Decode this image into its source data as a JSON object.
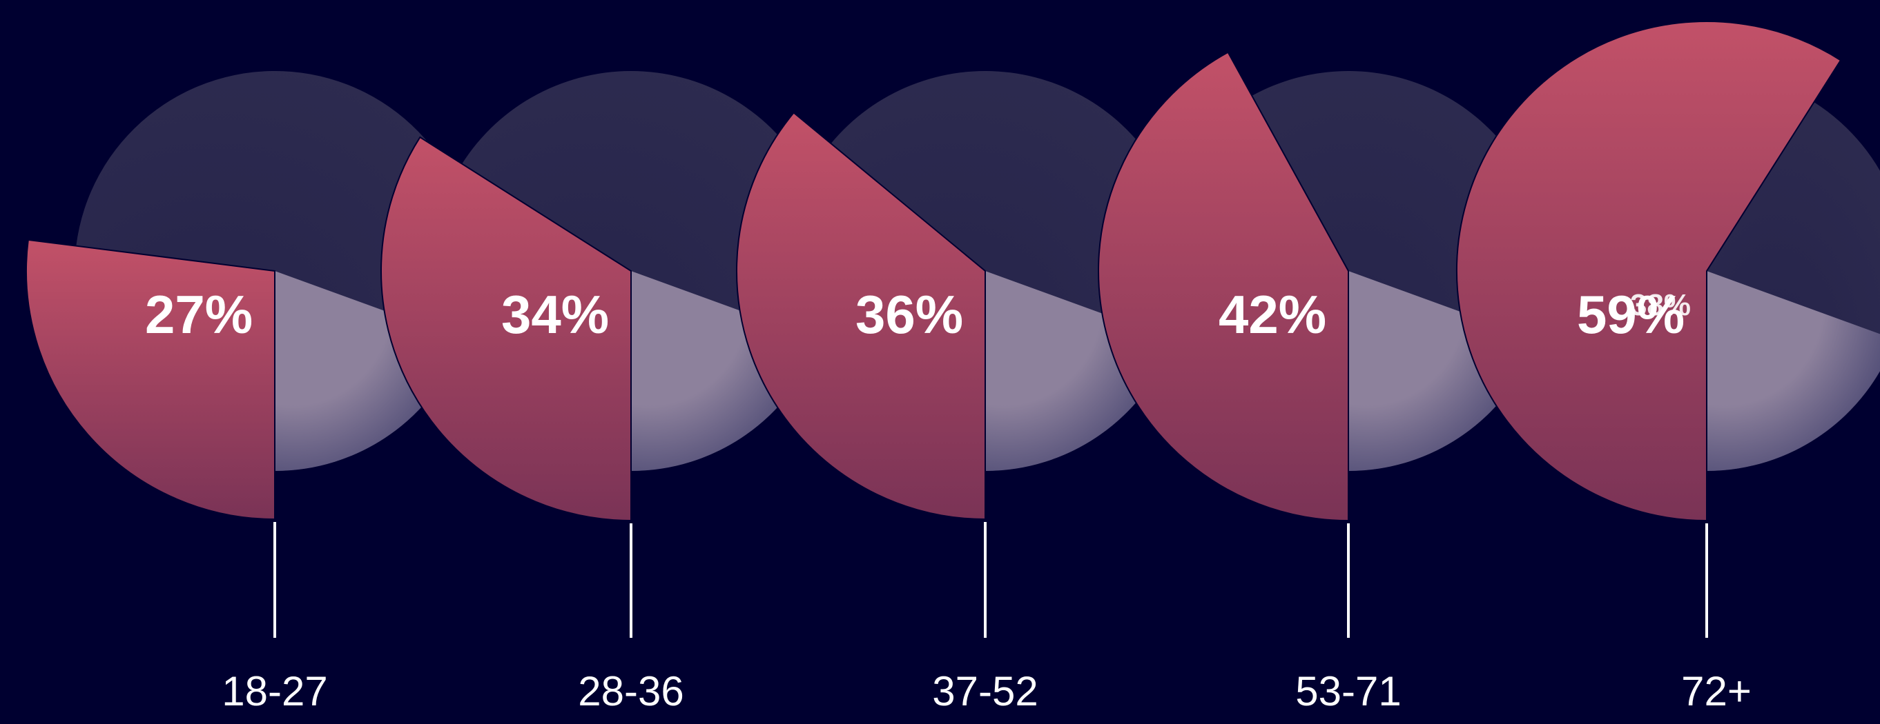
{
  "chart_data": {
    "type": "pie",
    "categories": [
      "18-27",
      "28-36",
      "37-52",
      "53-71",
      "72+"
    ],
    "series": [
      {
        "values": [
          27,
          34,
          36,
          42,
          59
        ],
        "labels": [
          "27%",
          "34%",
          "36%",
          "42%",
          "59%"
        ]
      }
    ],
    "small_label": "38%",
    "colors": {
      "background": "#000030",
      "highlight_top": "#c25168",
      "highlight_bottom": "#7a3356",
      "slice_dark": "#2e2c50",
      "slice_light": "#8d819c",
      "slice_light_edge": "#4d4a74",
      "stem": "#ffffff",
      "text": "#ffffff"
    },
    "legend": "none",
    "grid": false
  }
}
